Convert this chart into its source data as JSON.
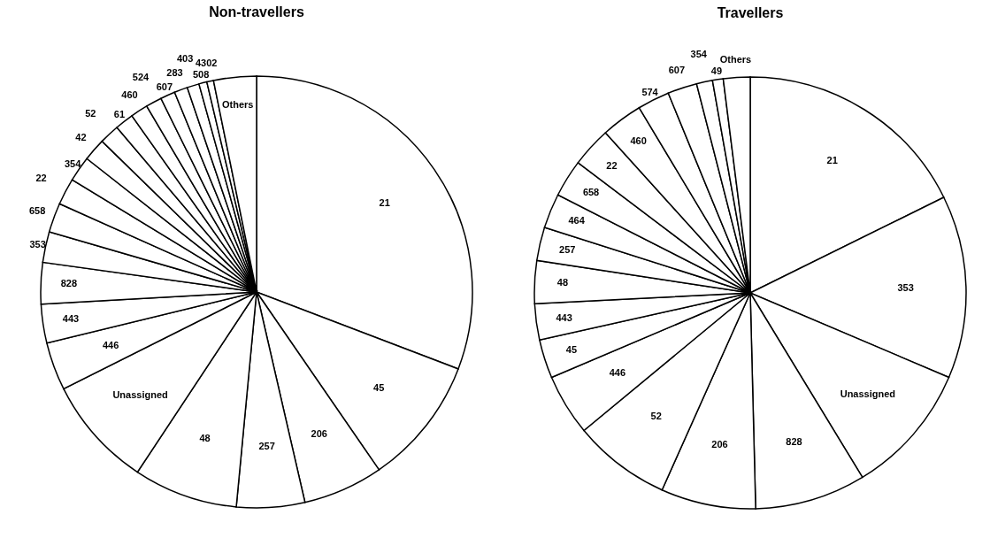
{
  "chart_data": [
    {
      "type": "pie",
      "title": "Non-travellers",
      "categories": [
        "21",
        "45",
        "206",
        "257",
        "48",
        "Unassigned",
        "446",
        "443",
        "828",
        "353",
        "658",
        "22",
        "354",
        "42",
        "52",
        "61",
        "460",
        "524",
        "607",
        "283",
        "403",
        "508",
        "4302",
        "Others"
      ],
      "values": [
        30.8,
        9.6,
        6.0,
        5.1,
        7.8,
        8.3,
        3.6,
        2.9,
        3.1,
        2.3,
        2.2,
        2.0,
        1.9,
        1.7,
        1.5,
        1.4,
        1.3,
        1.2,
        1.1,
        1.0,
        0.9,
        0.6,
        0.5,
        3.2
      ],
      "colors": [
        "#ffffff",
        "#ffffff",
        "#ffffff",
        "#ffffff",
        "#ffffff",
        "#ffffff",
        "#ffffff",
        "#ffffff",
        "#ffffff",
        "#ffffff",
        "#ffffff",
        "#ffffff",
        "#ffffff",
        "#ffffff",
        "#ffffff",
        "#ffffff",
        "#ffffff",
        "#ffffff",
        "#ffffff",
        "#ffffff",
        "#ffffff",
        "#ffffff",
        "#ffffff",
        "#ffffff"
      ]
    },
    {
      "type": "pie",
      "title": "Travellers",
      "categories": [
        "21",
        "353",
        "Unassigned",
        "828",
        "206",
        "52",
        "446",
        "45",
        "443",
        "48",
        "257",
        "464",
        "658",
        "22",
        "460",
        "574",
        "607",
        "354",
        "49",
        "Others"
      ],
      "values": [
        17.7,
        13.7,
        9.9,
        8.3,
        7.1,
        7.3,
        4.6,
        2.9,
        2.7,
        3.2,
        2.5,
        2.6,
        2.8,
        3.0,
        3.1,
        2.4,
        2.2,
        1.2,
        0.8,
        2.0
      ],
      "colors": [
        "#ffffff",
        "#ffffff",
        "#ffffff",
        "#ffffff",
        "#ffffff",
        "#ffffff",
        "#ffffff",
        "#ffffff",
        "#ffffff",
        "#ffffff",
        "#ffffff",
        "#ffffff",
        "#ffffff",
        "#ffffff",
        "#ffffff",
        "#ffffff",
        "#ffffff",
        "#ffffff",
        "#ffffff",
        "#ffffff"
      ]
    }
  ]
}
